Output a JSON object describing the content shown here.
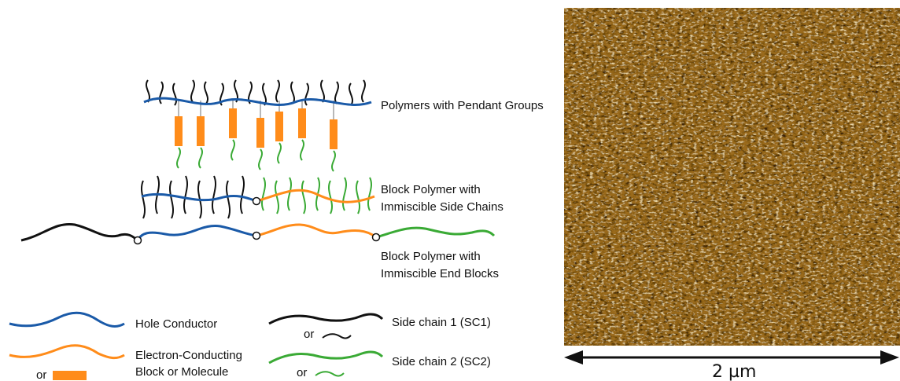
{
  "colors": {
    "hole": "#1a5aa8",
    "electron": "#ff8c1a",
    "side1": "#111111",
    "side2": "#3aaa35",
    "pendant": "#ff8c1a",
    "afm_base": "#9a6a1e"
  },
  "labels": {
    "pendant": "Polymers with Pendant Groups",
    "block_side_1": "Block Polymer with",
    "block_side_2": "Immiscible Side Chains",
    "block_end_1": "Block Polymer with",
    "block_end_2": "Immiscible End Blocks"
  },
  "legend": {
    "hole": "Hole Conductor",
    "electron_1": "Electron-Conducting",
    "electron_2": "Block or Molecule",
    "electron_or": "or",
    "side1": "Side chain 1 (SC1)",
    "side1_or": "or",
    "side2": "Side chain 2 (SC2)",
    "side2_or": "or"
  },
  "afm": {
    "scale_label": "2 µm"
  }
}
